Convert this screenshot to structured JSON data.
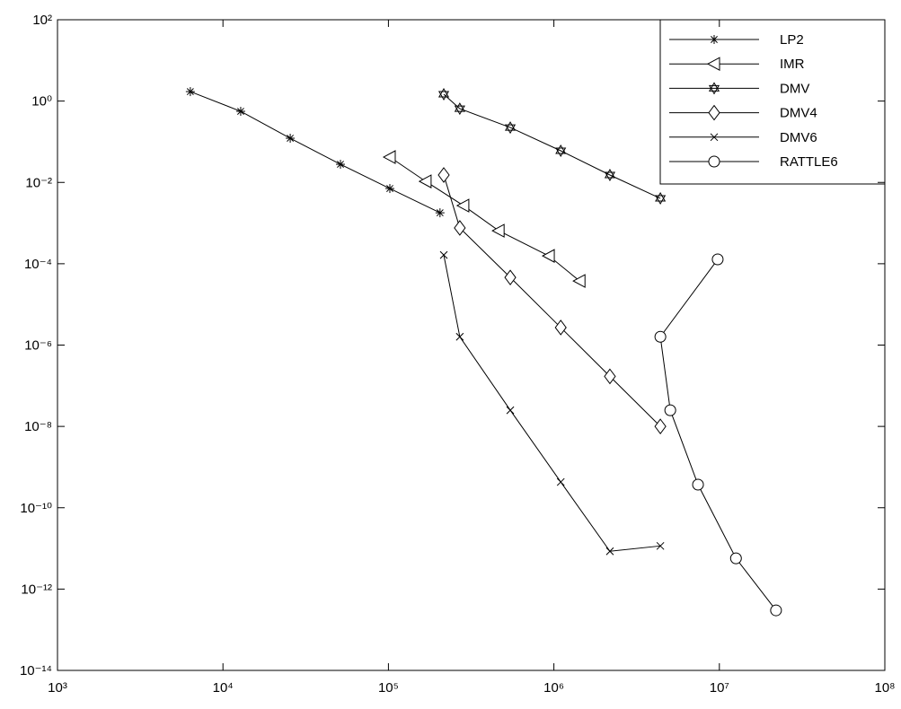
{
  "chart_data": {
    "type": "line",
    "log_x": true,
    "log_y": true,
    "grid": false,
    "legend": "upper right",
    "xlim": [
      1000,
      100000000
    ],
    "ylim": [
      1e-14,
      100
    ],
    "xticks": [
      {
        "value": 1000,
        "label": "10³"
      },
      {
        "value": 10000,
        "label": "10⁴"
      },
      {
        "value": 100000,
        "label": "10⁵"
      },
      {
        "value": 1000000,
        "label": "10⁶"
      },
      {
        "value": 10000000,
        "label": "10⁷"
      },
      {
        "value": 100000000,
        "label": "10⁸"
      }
    ],
    "yticks": [
      {
        "value": 1e-14,
        "label": "10⁻¹⁴"
      },
      {
        "value": 1e-12,
        "label": "10⁻¹²"
      },
      {
        "value": 1e-10,
        "label": "10⁻¹⁰"
      },
      {
        "value": 1e-08,
        "label": "10⁻⁸"
      },
      {
        "value": 1e-06,
        "label": "10⁻⁶"
      },
      {
        "value": 0.0001,
        "label": "10⁻⁴"
      },
      {
        "value": 0.01,
        "label": "10⁻²"
      },
      {
        "value": 1,
        "label": "10⁰"
      },
      {
        "value": 100,
        "label": "10²"
      }
    ],
    "series": [
      {
        "name": "LP2",
        "color": "#000000",
        "marker": "star",
        "x": [
          6350,
          12800,
          25500,
          51300,
          102000,
          205000
        ],
        "values": [
          1.71,
          0.56,
          0.122,
          0.0279,
          0.00708,
          0.00179
        ]
      },
      {
        "name": "IMR",
        "color": "#000000",
        "marker": "triangle-left",
        "x": [
          102000,
          168000,
          284000,
          464000,
          933000,
          1430000
        ],
        "values": [
          0.042,
          0.0106,
          0.00269,
          0.000649,
          0.000156,
          3.77e-05
        ]
      },
      {
        "name": "DMV",
        "color": "#000000",
        "marker": "hexagram",
        "x": [
          216000,
          270000,
          545000,
          1100000,
          2180000,
          4400000
        ],
        "values": [
          1.47,
          0.65,
          0.224,
          0.06,
          0.0152,
          0.00405
        ]
      },
      {
        "name": "DMV4",
        "color": "#000000",
        "marker": "diamond",
        "x": [
          216000,
          270000,
          545000,
          1100000,
          2180000,
          4400000
        ],
        "values": [
          0.0152,
          0.00076,
          4.6e-05,
          2.7e-06,
          1.7e-07,
          1e-08
        ]
      },
      {
        "name": "DMV6",
        "color": "#000000",
        "marker": "x",
        "x": [
          216000,
          270000,
          545000,
          1100000,
          2180000,
          4400000
        ],
        "values": [
          0.000164,
          1.6e-06,
          2.5e-08,
          4.3e-10,
          8.5e-12,
          1.15e-11
        ]
      },
      {
        "name": "RATTLE6",
        "color": "#000000",
        "marker": "circle",
        "x": [
          9770000,
          4400000,
          5050000,
          7430000,
          12600000,
          22000000
        ],
        "values": [
          0.000128,
          1.6e-06,
          2.5e-08,
          3.7e-10,
          5.7e-12,
          3e-13
        ]
      }
    ]
  }
}
